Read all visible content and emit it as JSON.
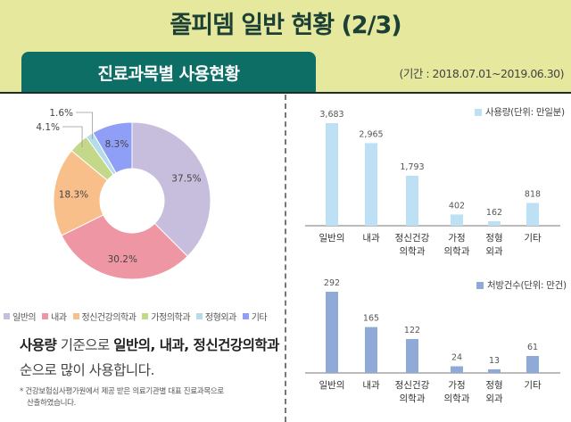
{
  "header": {
    "title": "졸피뎀 일반 현황 (2/3)",
    "tab_label": "진료과목별 사용현황",
    "period": "(기간 : 2018.07.01~2019.06.30)"
  },
  "colors": {
    "header_bg": "#e5e89d",
    "tab_bg": "#0d6e66",
    "usage_bar": "#bde0f5",
    "prescription_bar": "#8faad6"
  },
  "categories": [
    {
      "name": "일반의",
      "short": [
        "일반의"
      ],
      "color": "#c7bedd"
    },
    {
      "name": "내과",
      "short": [
        "내과"
      ],
      "color": "#ee96a3"
    },
    {
      "name": "정신건강의학과",
      "short": [
        "정신건강",
        "의학과"
      ],
      "color": "#f8bf8a"
    },
    {
      "name": "가정의학과",
      "short": [
        "가정",
        "의학과"
      ],
      "color": "#c4d88a"
    },
    {
      "name": "정형외과",
      "short": [
        "정형",
        "외과"
      ],
      "color": "#b5dcea"
    },
    {
      "name": "기타",
      "short": [
        "기타"
      ],
      "color": "#8f9ef6"
    }
  ],
  "summary": {
    "line1_bold1": "사용량",
    "line1_mid": " 기준으로 ",
    "line1_bold2": "일반의, 내과, 정신건강의학과",
    "line2": "순으로 많이 사용합니다."
  },
  "footnote": {
    "line1": "* 건강보험심사평가원에서 제공 받은 의료기관별 대표 진료과목으로",
    "line2": "산출하였습니다."
  },
  "chart_data": [
    {
      "type": "pie",
      "title": "진료과목별 사용 비중",
      "categories": [
        "일반의",
        "내과",
        "정신건강의학과",
        "가정의학과",
        "정형외과",
        "기타"
      ],
      "values": [
        37.5,
        30.2,
        18.3,
        4.1,
        1.6,
        8.3
      ],
      "labels": [
        "37.5%",
        "30.2%",
        "18.3%",
        "4.1%",
        "1.6%",
        "8.3%"
      ],
      "donut": true,
      "legend": "bottom"
    },
    {
      "type": "bar",
      "title": "",
      "series_name": "사용량(단위: 만일분)",
      "categories": [
        "일반의",
        "내과",
        "정신건강의학과",
        "가정의학과",
        "정형외과",
        "기타"
      ],
      "values": [
        3683,
        2965,
        1793,
        402,
        162,
        818
      ],
      "labels": [
        "3,683",
        "2,965",
        "1,793",
        "402",
        "162",
        "818"
      ],
      "xlabel": "",
      "ylabel": "",
      "ylim": [
        0,
        3683
      ],
      "grid": false,
      "legend": "top-right"
    },
    {
      "type": "bar",
      "title": "",
      "series_name": "처방건수(단위: 만건)",
      "categories": [
        "일반의",
        "내과",
        "정신건강의학과",
        "가정의학과",
        "정형외과",
        "기타"
      ],
      "values": [
        292,
        165,
        122,
        24,
        13,
        61
      ],
      "labels": [
        "292",
        "165",
        "122",
        "24",
        "13",
        "61"
      ],
      "xlabel": "",
      "ylabel": "",
      "ylim": [
        0,
        292
      ],
      "grid": false,
      "legend": "top-right"
    }
  ]
}
